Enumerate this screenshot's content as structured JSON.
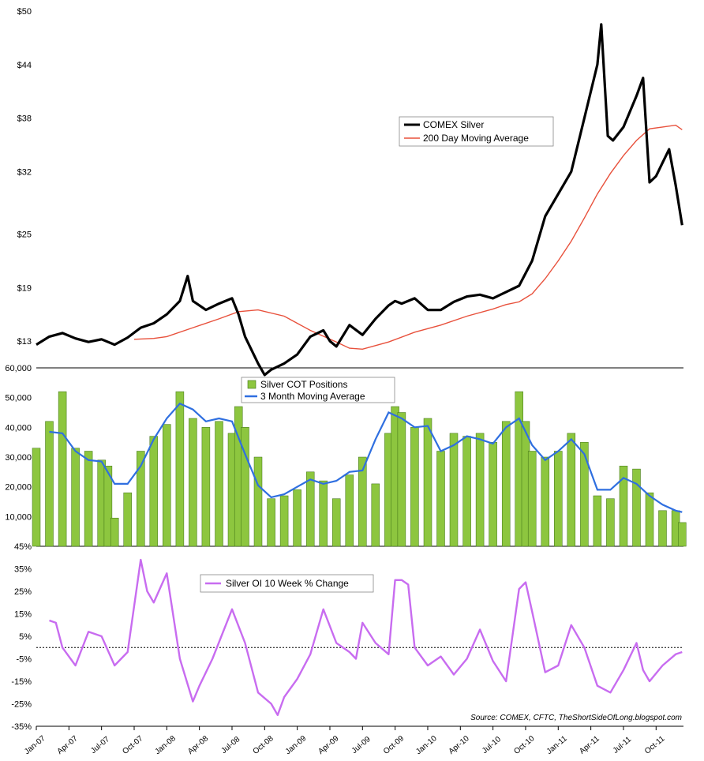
{
  "source_note": "Source: COMEX, CFTC, TheShortSideOfLong.blogspot.com",
  "colors": {
    "price": "#000000",
    "ma200": "#e8513c",
    "cot_bar": "#8dc63f",
    "cot_bar_edge": "#3a6e12",
    "ma3m": "#2f6fe0",
    "oi": "#c86cf0",
    "axis": "#000000"
  },
  "chart_data": [
    {
      "type": "line",
      "panel": "price",
      "y_tick_labels": [
        "$13",
        "$19",
        "$25",
        "$32",
        "$38",
        "$44",
        "$50"
      ],
      "ylim": [
        10,
        50
      ],
      "legend": {
        "placement": "center-right",
        "entries": [
          "COMEX Silver",
          "200 Day Moving Average"
        ]
      },
      "series": [
        {
          "name": "COMEX Silver",
          "x": [
            2007.0,
            2007.1,
            2007.2,
            2007.3,
            2007.4,
            2007.5,
            2007.6,
            2007.7,
            2007.8,
            2007.9,
            2008.0,
            2008.1,
            2008.16,
            2008.2,
            2008.25,
            2008.3,
            2008.4,
            2008.5,
            2008.55,
            2008.6,
            2008.7,
            2008.75,
            2008.8,
            2008.9,
            2009.0,
            2009.1,
            2009.2,
            2009.25,
            2009.3,
            2009.4,
            2009.5,
            2009.6,
            2009.7,
            2009.75,
            2009.8,
            2009.9,
            2010.0,
            2010.1,
            2010.2,
            2010.3,
            2010.4,
            2010.5,
            2010.6,
            2010.7,
            2010.8,
            2010.9,
            2011.0,
            2011.1,
            2011.2,
            2011.3,
            2011.33,
            2011.38,
            2011.42,
            2011.5,
            2011.6,
            2011.65,
            2011.7,
            2011.75,
            2011.8,
            2011.85,
            2011.9,
            2011.95
          ],
          "values": [
            12.6,
            13.5,
            13.9,
            13.3,
            12.9,
            13.2,
            12.6,
            13.4,
            14.5,
            15.0,
            16.0,
            17.5,
            20.3,
            17.5,
            17.0,
            16.5,
            17.2,
            17.8,
            16.0,
            13.5,
            10.5,
            9.2,
            9.8,
            10.5,
            11.5,
            13.5,
            14.2,
            13.0,
            12.4,
            14.8,
            13.7,
            15.5,
            17.0,
            17.5,
            17.2,
            17.8,
            16.5,
            16.5,
            17.4,
            18.0,
            18.2,
            17.8,
            18.5,
            19.2,
            22.0,
            27.0,
            29.5,
            32.0,
            38.0,
            44.0,
            48.5,
            36.0,
            35.5,
            37.0,
            40.5,
            42.5,
            30.8,
            31.5,
            33.0,
            34.5,
            30.5,
            26.0
          ]
        },
        {
          "name": "200 Day Moving Average",
          "x": [
            2007.75,
            2007.9,
            2008.0,
            2008.2,
            2008.4,
            2008.55,
            2008.7,
            2008.9,
            2009.1,
            2009.3,
            2009.4,
            2009.5,
            2009.7,
            2009.9,
            2010.1,
            2010.3,
            2010.5,
            2010.6,
            2010.7,
            2010.8,
            2010.9,
            2011.0,
            2011.1,
            2011.2,
            2011.3,
            2011.4,
            2011.5,
            2011.6,
            2011.7,
            2011.8,
            2011.9,
            2011.95
          ],
          "values": [
            13.2,
            13.3,
            13.5,
            14.5,
            15.5,
            16.3,
            16.5,
            15.8,
            14.2,
            12.9,
            12.2,
            12.1,
            12.9,
            14.0,
            14.8,
            15.8,
            16.6,
            17.1,
            17.4,
            18.3,
            20.0,
            22.0,
            24.2,
            26.8,
            29.5,
            31.8,
            33.8,
            35.5,
            36.8,
            37.0,
            37.2,
            36.7
          ]
        }
      ]
    },
    {
      "type": "bar",
      "panel": "cot",
      "y_tick_labels": [
        "10,000",
        "20,000",
        "30,000",
        "40,000",
        "50,000",
        "60,000"
      ],
      "ylim": [
        0,
        60000
      ],
      "legend": {
        "placement": "top-center",
        "entries": [
          "Silver COT Positions",
          "3 Month Moving Average"
        ]
      },
      "series": [
        {
          "name": "Silver COT Positions",
          "x": [
            2007.0,
            2007.1,
            2007.2,
            2007.3,
            2007.4,
            2007.5,
            2007.55,
            2007.6,
            2007.7,
            2007.8,
            2007.9,
            2008.0,
            2008.1,
            2008.2,
            2008.3,
            2008.4,
            2008.5,
            2008.55,
            2008.6,
            2008.7,
            2008.8,
            2008.9,
            2009.0,
            2009.1,
            2009.2,
            2009.3,
            2009.4,
            2009.5,
            2009.6,
            2009.7,
            2009.75,
            2009.8,
            2009.9,
            2010.0,
            2010.1,
            2010.2,
            2010.3,
            2010.4,
            2010.5,
            2010.6,
            2010.7,
            2010.75,
            2010.8,
            2010.9,
            2011.0,
            2011.1,
            2011.2,
            2011.3,
            2011.4,
            2011.5,
            2011.6,
            2011.7,
            2011.8,
            2011.9,
            2011.95
          ],
          "values": [
            33000,
            42000,
            52000,
            33000,
            32000,
            29000,
            27000,
            9500,
            18000,
            32000,
            37000,
            41000,
            52000,
            43000,
            40000,
            42000,
            38000,
            47000,
            40000,
            30000,
            16000,
            17000,
            19000,
            25000,
            22000,
            16000,
            24000,
            30000,
            21000,
            38000,
            47000,
            45000,
            40000,
            43000,
            32000,
            38000,
            37000,
            38000,
            35000,
            42000,
            52000,
            42000,
            32000,
            30000,
            32000,
            38000,
            35000,
            17000,
            16000,
            27000,
            26000,
            18000,
            12000,
            12000,
            8000
          ]
        },
        {
          "name": "3 Month Moving Average",
          "x": [
            2007.1,
            2007.2,
            2007.3,
            2007.4,
            2007.5,
            2007.6,
            2007.7,
            2007.8,
            2007.9,
            2008.0,
            2008.1,
            2008.2,
            2008.3,
            2008.4,
            2008.5,
            2008.6,
            2008.7,
            2008.8,
            2008.9,
            2009.0,
            2009.1,
            2009.2,
            2009.3,
            2009.4,
            2009.5,
            2009.6,
            2009.7,
            2009.8,
            2009.9,
            2010.0,
            2010.1,
            2010.2,
            2010.3,
            2010.4,
            2010.5,
            2010.6,
            2010.7,
            2010.8,
            2010.9,
            2011.0,
            2011.1,
            2011.2,
            2011.3,
            2011.4,
            2011.5,
            2011.6,
            2011.7,
            2011.8,
            2011.9,
            2011.95
          ],
          "values": [
            38500,
            38000,
            32000,
            29000,
            28500,
            21000,
            21000,
            27000,
            36000,
            43000,
            48000,
            46000,
            42000,
            43000,
            42000,
            31000,
            20500,
            16500,
            17500,
            20000,
            22500,
            21000,
            22000,
            25000,
            25500,
            36000,
            45000,
            43000,
            40000,
            40500,
            32000,
            34000,
            37000,
            36000,
            34500,
            40000,
            43000,
            34000,
            29000,
            32000,
            36000,
            31000,
            19000,
            19000,
            23000,
            21000,
            17000,
            14000,
            12000,
            11500
          ]
        }
      ]
    },
    {
      "type": "line",
      "panel": "oi",
      "y_tick_labels": [
        "-35%",
        "-25%",
        "-15%",
        "-5%",
        "5%",
        "15%",
        "25%",
        "35%",
        "45%"
      ],
      "ylim": [
        -35,
        45
      ],
      "zero_line": true,
      "legend": {
        "placement": "top-left",
        "entries": [
          "Silver OI 10 Week % Change"
        ]
      },
      "x_tick_labels": [
        "Jan-07",
        "Apr-07",
        "Jul-07",
        "Oct-07",
        "Jan-08",
        "Apr-08",
        "Jul-08",
        "Oct-08",
        "Jan-09",
        "Apr-09",
        "Jul-09",
        "Oct-09",
        "Jan-10",
        "Apr-10",
        "Jul-10",
        "Oct-10",
        "Jan-11",
        "Apr-11",
        "Jul-11",
        "Oct-11"
      ],
      "series": [
        {
          "name": "Silver OI 10 Week % Change",
          "x": [
            2007.1,
            2007.15,
            2007.2,
            2007.3,
            2007.4,
            2007.5,
            2007.6,
            2007.7,
            2007.8,
            2007.85,
            2007.9,
            2008.0,
            2008.1,
            2008.2,
            2008.25,
            2008.35,
            2008.5,
            2008.6,
            2008.7,
            2008.8,
            2008.85,
            2008.9,
            2009.0,
            2009.1,
            2009.2,
            2009.3,
            2009.4,
            2009.45,
            2009.5,
            2009.6,
            2009.7,
            2009.75,
            2009.8,
            2009.85,
            2009.9,
            2010.0,
            2010.1,
            2010.2,
            2010.3,
            2010.4,
            2010.5,
            2010.6,
            2010.7,
            2010.75,
            2010.8,
            2010.9,
            2011.0,
            2011.1,
            2011.2,
            2011.3,
            2011.4,
            2011.5,
            2011.6,
            2011.65,
            2011.7,
            2011.8,
            2011.9,
            2011.95
          ],
          "values": [
            12,
            11,
            0,
            -8,
            7,
            5,
            -8,
            -2,
            39,
            25,
            20,
            33,
            -5,
            -24,
            -17,
            -5,
            17,
            2,
            -20,
            -25,
            -30,
            -22,
            -14,
            -3,
            17,
            2,
            -2,
            -5,
            11,
            2,
            -3,
            30,
            30,
            28,
            0,
            -8,
            -4,
            -12,
            -5,
            8,
            -6,
            -15,
            26,
            29,
            16,
            -11,
            -8,
            10,
            0,
            -17,
            -20,
            -10,
            2,
            -10,
            -15,
            -8,
            -3,
            -2
          ]
        }
      ]
    }
  ]
}
